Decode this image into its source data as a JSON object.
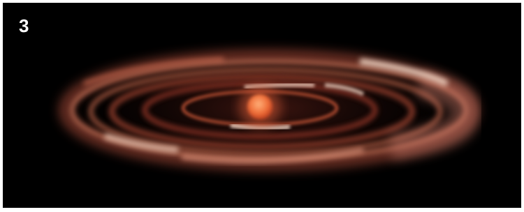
{
  "label": "3"
}
